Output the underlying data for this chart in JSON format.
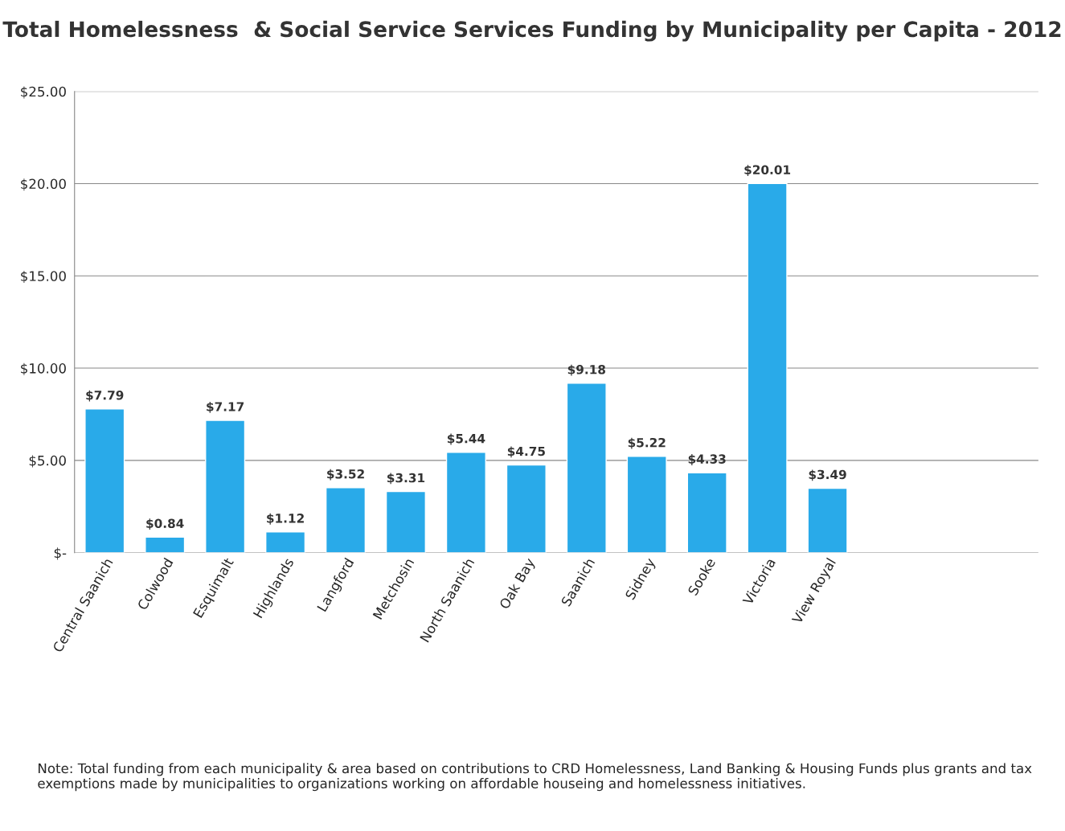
{
  "chart_data": {
    "type": "bar",
    "title": "Total Homelessness  & Social Service Services Funding by Municipality per Capita - 2012",
    "categories": [
      "Central Saanich",
      "Colwood",
      "Esquimalt",
      "Highlands",
      "Langford",
      "Metchosin",
      "North Saanich",
      "Oak Bay",
      "Saanich",
      "Sidney",
      "Sooke",
      "Victoria",
      "View Royal",
      null,
      null,
      null
    ],
    "values": [
      7.79,
      0.84,
      7.17,
      1.12,
      3.52,
      3.31,
      5.44,
      4.75,
      9.18,
      5.22,
      4.33,
      20.01,
      3.49,
      null,
      null,
      null
    ],
    "value_labels": [
      "$7.79",
      "$0.84",
      "$7.17",
      "$1.12",
      "$3.52",
      "$3.31",
      "$5.44",
      "$4.75",
      "$9.18",
      "$5.22",
      "$4.33",
      "$20.01",
      "$3.49",
      null,
      null,
      null
    ],
    "color": "#29aae9",
    "ylim": [
      0,
      25
    ],
    "yticks": [
      {
        "value": 0,
        "label": "$-"
      },
      {
        "value": 5,
        "label": "$5.00"
      },
      {
        "value": 10,
        "label": "$10.00"
      },
      {
        "value": 15,
        "label": "$15.00"
      },
      {
        "value": 20,
        "label": "$20.00"
      },
      {
        "value": 25,
        "label": "$25.00"
      }
    ],
    "grid": "y",
    "annotations": [
      "Note: Total funding from each municipality & area based on contributions to CRD Homelessness, Land Banking & Housing Funds plus grants and tax exemptions made by municipalities to organizations working on affordable houseing and homelessness initiatives."
    ]
  }
}
